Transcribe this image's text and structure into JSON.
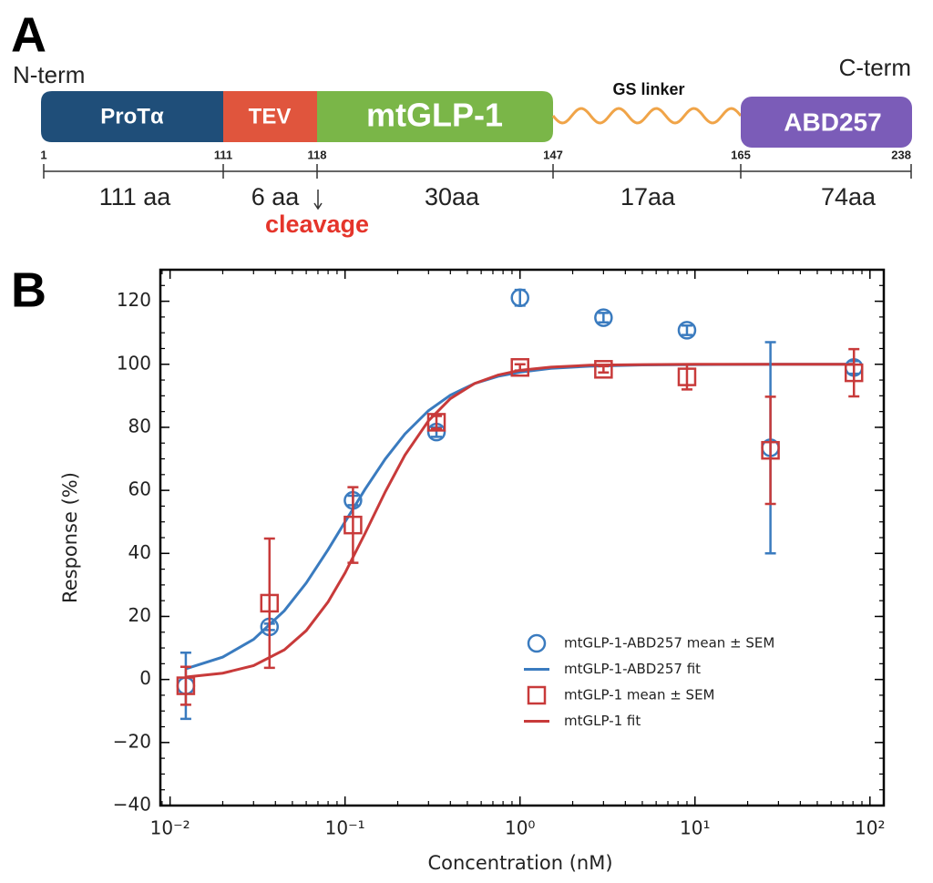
{
  "panel_a": {
    "label": "A",
    "n_term": "N-term",
    "c_term": "C-term",
    "segments": [
      "ProTα",
      "TEV",
      "mtGLP-1",
      "GS linker",
      "ABD257"
    ],
    "positions": [
      1,
      111,
      118,
      147,
      165,
      238
    ],
    "lengths": [
      "111 aa",
      "6 aa",
      "30aa",
      "17aa",
      "74aa"
    ],
    "annotation": "cleavage"
  },
  "chart_data": {
    "type": "scatter",
    "panel_label": "B",
    "x_label": "Concentration (nM)",
    "y_label": "Response (%)",
    "xscale": "log",
    "xlim": [
      0.0088,
      120
    ],
    "ylim": [
      -40,
      130
    ],
    "xticks": [
      {
        "value": 0.01,
        "label": "10⁻²"
      },
      {
        "value": 0.1,
        "label": "10⁻¹"
      },
      {
        "value": 1,
        "label": "10⁰"
      },
      {
        "value": 10,
        "label": "10¹"
      },
      {
        "value": 100,
        "label": "10²"
      }
    ],
    "yticks": [
      {
        "value": -40,
        "label": "−40"
      },
      {
        "value": -20,
        "label": "−20"
      },
      0,
      20,
      40,
      60,
      80,
      100,
      120
    ],
    "grid": false,
    "legend": "lower right",
    "series": [
      {
        "name": "mtGLP-1-ABD257 mean ± SEM",
        "kind": "errorbar",
        "marker": "circle",
        "color": "#3a7bbf",
        "x": [
          0.0123,
          0.037,
          0.111,
          0.333,
          1,
          3,
          9,
          27,
          81
        ],
        "values": [
          -2,
          16.7,
          56.8,
          78.5,
          121.1,
          114.8,
          110.8,
          73.5,
          99
        ],
        "errors": [
          10.5,
          1,
          1.5,
          1.5,
          2.5,
          1.5,
          1.5,
          33.5,
          2
        ]
      },
      {
        "name": "mtGLP-1-ABD257 fit",
        "kind": "line",
        "color": "#3a7bbf",
        "x": [
          0.0123,
          0.02,
          0.03,
          0.045,
          0.06,
          0.08,
          0.1,
          0.13,
          0.17,
          0.22,
          0.3,
          0.4,
          0.55,
          0.75,
          1,
          1.5,
          2.5,
          5,
          10,
          30,
          81
        ],
        "values": [
          3.4,
          7.1,
          12.7,
          21.8,
          30.6,
          41.2,
          50,
          60.3,
          70.0,
          77.9,
          85.3,
          90.2,
          93.9,
          96.2,
          97.5,
          98.7,
          99.4,
          99.8,
          99.9,
          100,
          100
        ]
      },
      {
        "name": "mtGLP-1 mean ± SEM",
        "kind": "errorbar",
        "marker": "square",
        "color": "#c83a3a",
        "x": [
          0.0123,
          0.037,
          0.111,
          0.333,
          1,
          3,
          9,
          27,
          81
        ],
        "values": [
          -2,
          24.2,
          49,
          81.6,
          99,
          98.4,
          96,
          72.7,
          97.3
        ],
        "errors": [
          6,
          20.5,
          12,
          2,
          1,
          1,
          4,
          17,
          7.5
        ]
      },
      {
        "name": "mtGLP-1 fit",
        "kind": "line",
        "color": "#c83a3a",
        "x": [
          0.0123,
          0.02,
          0.03,
          0.045,
          0.06,
          0.08,
          0.1,
          0.13,
          0.17,
          0.22,
          0.3,
          0.4,
          0.55,
          0.75,
          1,
          1.5,
          2.5,
          5,
          10,
          30,
          81
        ],
        "values": [
          0.77,
          2.0,
          4.4,
          9.4,
          15.5,
          24.6,
          33.8,
          46.3,
          59.6,
          71.2,
          82.1,
          89.1,
          93.9,
          96.6,
          98.1,
          99.1,
          99.7,
          99.9,
          100,
          100,
          100
        ]
      }
    ]
  }
}
